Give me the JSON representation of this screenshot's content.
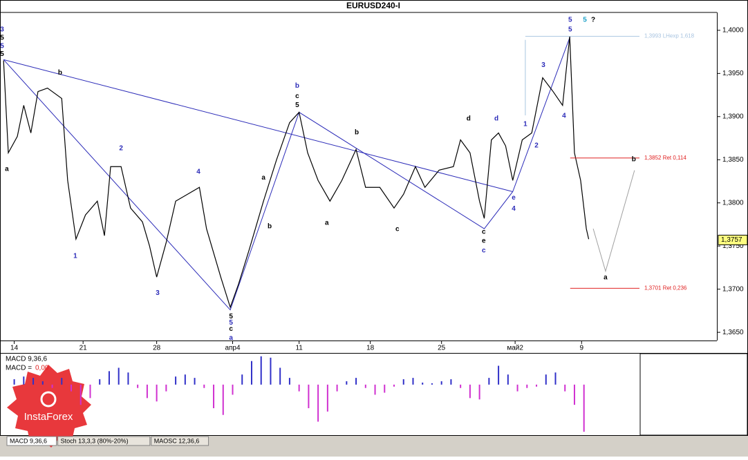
{
  "chart_data": [
    {
      "type": "line",
      "title": "EURUSD240-I",
      "color": "#000000",
      "x": [
        -4.5,
        -2.5,
        1.3,
        4,
        7,
        10,
        14,
        20,
        22.5,
        26,
        30,
        35,
        38,
        40.6,
        45,
        49,
        54,
        57,
        60,
        64,
        68,
        73,
        78,
        81,
        87,
        91,
        94.5,
        99,
        105,
        110.5,
        116,
        120,
        123.6,
        128,
        133,
        138,
        144,
        148,
        154,
        160,
        164,
        169,
        173,
        179,
        185,
        188,
        192,
        196,
        198,
        201,
        204,
        207,
        210,
        214,
        218,
        222.6,
        227,
        231,
        234,
        236,
        238.6,
        241,
        242
      ],
      "values": [
        1.3965,
        1.3858,
        1.3877,
        1.3913,
        1.3881,
        1.3929,
        1.3933,
        1.3921,
        1.3826,
        1.3758,
        1.3786,
        1.3802,
        1.3762,
        1.3842,
        1.3842,
        1.3794,
        1.3778,
        1.375,
        1.3714,
        1.3754,
        1.3802,
        1.381,
        1.3818,
        1.377,
        1.3714,
        1.3679,
        1.3706,
        1.3746,
        1.3802,
        1.385,
        1.3893,
        1.3905,
        1.3858,
        1.3826,
        1.3802,
        1.3826,
        1.3862,
        1.3818,
        1.3818,
        1.3794,
        1.381,
        1.3842,
        1.3818,
        1.3838,
        1.3842,
        1.3873,
        1.3858,
        1.3802,
        1.3782,
        1.3873,
        1.3881,
        1.3866,
        1.3826,
        1.3873,
        1.3881,
        1.3945,
        1.3929,
        1.3913,
        1.3993,
        1.3858,
        1.3826,
        1.377,
        1.3758
      ],
      "xlim": [
        -6,
        296
      ],
      "ylim": [
        1.36405,
        1.40207
      ],
      "xticks": [
        {
          "value": 0,
          "label": "14"
        },
        {
          "value": 29,
          "label": "21"
        },
        {
          "value": 60,
          "label": "28"
        },
        {
          "value": 92,
          "label": "апр4"
        },
        {
          "value": 120,
          "label": "11"
        },
        {
          "value": 150,
          "label": "18"
        },
        {
          "value": 180,
          "label": "25"
        },
        {
          "value": 211,
          "label": "май2"
        },
        {
          "value": 239,
          "label": "9"
        }
      ],
      "yticks": [
        {
          "value": 1.4,
          "label": "1,4000"
        },
        {
          "value": 1.395,
          "label": "1,3950"
        },
        {
          "value": 1.39,
          "label": "1,3900"
        },
        {
          "value": 1.385,
          "label": "1,3850"
        },
        {
          "value": 1.38,
          "label": "1,3800"
        },
        {
          "value": 1.375,
          "label": "1,3750"
        },
        {
          "value": 1.37,
          "label": "1,3700"
        },
        {
          "value": 1.365,
          "label": "1,3650"
        }
      ],
      "last": {
        "value": 1.3757,
        "label": "1,3757"
      },
      "levels": [
        {
          "value": 1.3993,
          "label": "1,3993 LHexp 1,618",
          "color": "#a8c4e0",
          "from": 215.3
        },
        {
          "value": 1.3852,
          "label": "1,3852 Ret 0,114",
          "color": "#e02020",
          "from": 234.2
        },
        {
          "value": 1.3701,
          "label": "1,3701 Ret 0,236",
          "color": "#e02020",
          "from": 234.2
        }
      ],
      "lines": [
        {
          "color": "#2b2bb8",
          "x": [
            -4.5,
            91,
            120,
            198,
            210,
            234.2
          ],
          "y": [
            1.3966,
            1.3676,
            1.3905,
            1.377,
            1.3813,
            1.3993
          ]
        },
        {
          "color": "#2b2bb8",
          "x": [
            -4.5,
            210
          ],
          "y": [
            1.3966,
            1.3813
          ]
        },
        {
          "color": "#a0a0a0",
          "x": [
            243.9,
            249.1,
            261.3
          ],
          "y": [
            1.37701,
            1.37208,
            1.38377
          ]
        },
        {
          "color": "#a8c4e0",
          "x": [
            215.3,
            215.3
          ],
          "y": [
            1.39014,
            1.39889
          ]
        }
      ],
      "annotations": [
        {
          "text": "5",
          "x": 234.2,
          "y": 1.40119,
          "color": "#2b2bb8"
        },
        {
          "text": "5",
          "x": 240.4,
          "y": 1.40119,
          "color": "#1aa0c8"
        },
        {
          "text": "?",
          "x": 243.9,
          "y": 1.40119,
          "color": "#000000"
        },
        {
          "text": "5",
          "x": 234.2,
          "y": 1.40008,
          "color": "#2b2bb8"
        },
        {
          "text": "3",
          "x": -5.1,
          "y": 1.40008,
          "color": "#2b2bb8"
        },
        {
          "text": "5",
          "x": -5.1,
          "y": 1.39913,
          "color": "#000000"
        },
        {
          "text": "5",
          "x": -5.1,
          "y": 1.39817,
          "color": "#2b2bb8"
        },
        {
          "text": "5",
          "x": -5.1,
          "y": 1.39722,
          "color": "#000000"
        },
        {
          "text": "a",
          "x": -3.1,
          "y": 1.38393,
          "color": "#000000"
        },
        {
          "text": "b",
          "x": 19.3,
          "y": 1.39507,
          "color": "#000000"
        },
        {
          "text": "2",
          "x": 45,
          "y": 1.38632,
          "color": "#2b2bb8"
        },
        {
          "text": "4",
          "x": 77.6,
          "y": 1.38361,
          "color": "#2b2bb8"
        },
        {
          "text": "3",
          "x": 60.4,
          "y": 1.36953,
          "color": "#2b2bb8"
        },
        {
          "text": "1",
          "x": 25.7,
          "y": 1.37383,
          "color": "#2b2bb8"
        },
        {
          "text": "b",
          "x": 119.2,
          "y": 1.39356,
          "color": "#2b2bb8"
        },
        {
          "text": "c",
          "x": 119.2,
          "y": 1.39236,
          "color": "#000000"
        },
        {
          "text": "5",
          "x": 119.2,
          "y": 1.39133,
          "color": "#000000"
        },
        {
          "text": "d",
          "x": 191.4,
          "y": 1.38974,
          "color": "#000000"
        },
        {
          "text": "d",
          "x": 203.1,
          "y": 1.38974,
          "color": "#2b2bb8"
        },
        {
          "text": "e",
          "x": 210.4,
          "y": 1.38059,
          "color": "#2b2bb8"
        },
        {
          "text": "4",
          "x": 210.4,
          "y": 1.37932,
          "color": "#2b2bb8"
        },
        {
          "text": "3",
          "x": 222.9,
          "y": 1.39594,
          "color": "#2b2bb8"
        },
        {
          "text": "4",
          "x": 231.6,
          "y": 1.39006,
          "color": "#2b2bb8"
        },
        {
          "text": "2",
          "x": 220,
          "y": 1.38664,
          "color": "#2b2bb8"
        },
        {
          "text": "1",
          "x": 215.3,
          "y": 1.3891,
          "color": "#2b2bb8"
        },
        {
          "text": "c",
          "x": 197.8,
          "y": 1.37661,
          "color": "#000000"
        },
        {
          "text": "e",
          "x": 197.8,
          "y": 1.37558,
          "color": "#000000"
        },
        {
          "text": "c",
          "x": 197.8,
          "y": 1.37446,
          "color": "#2b2bb8"
        },
        {
          "text": "5",
          "x": 91.3,
          "y": 1.36683,
          "color": "#000000"
        },
        {
          "text": "5",
          "x": 91.3,
          "y": 1.36611,
          "color": "#2b2bb8"
        },
        {
          "text": "c",
          "x": 91.3,
          "y": 1.3654,
          "color": "#000000"
        },
        {
          "text": "a",
          "x": 91.3,
          "y": 1.36436,
          "color": "#2b2bb8"
        },
        {
          "text": "b",
          "x": 144.3,
          "y": 1.38815,
          "color": "#000000"
        },
        {
          "text": "a",
          "x": 131.7,
          "y": 1.37765,
          "color": "#000000"
        },
        {
          "text": "c",
          "x": 161.4,
          "y": 1.37693,
          "color": "#000000"
        },
        {
          "text": "b",
          "x": 107.6,
          "y": 1.37725,
          "color": "#000000"
        },
        {
          "text": "a",
          "x": 105,
          "y": 1.3829,
          "color": "#000000"
        },
        {
          "text": "b",
          "x": 261,
          "y": 1.38505,
          "color": "#000000"
        },
        {
          "text": "a",
          "x": 249.1,
          "y": 1.37136,
          "color": "#000000"
        }
      ]
    },
    {
      "type": "bar",
      "title": "MACD 9,36,6",
      "value_title": "MACD =",
      "current": {
        "value": 0,
        "label": "0,00"
      },
      "positive_color": "#3030c8",
      "negative_color": "#d030d0",
      "ylim": [
        -75,
        46
      ],
      "x": [
        0,
        4,
        8,
        12,
        16,
        20,
        24,
        28,
        32,
        36,
        40,
        44,
        48,
        52,
        56,
        60,
        64,
        68,
        72,
        76,
        80,
        84,
        88,
        92,
        96,
        100,
        104,
        108,
        112,
        116,
        120,
        124,
        128,
        132,
        136,
        140,
        144,
        148,
        152,
        156,
        160,
        164,
        168,
        172,
        176,
        180,
        184,
        188,
        192,
        196,
        200,
        204,
        208,
        212,
        216,
        220,
        224,
        228,
        232,
        236,
        240
      ],
      "values": [
        8,
        12,
        10,
        5,
        -5,
        10,
        -10,
        -30,
        -20,
        8,
        20,
        25,
        18,
        -5,
        -20,
        -25,
        -10,
        12,
        15,
        10,
        -5,
        -35,
        -45,
        -15,
        15,
        35,
        42,
        40,
        25,
        10,
        -10,
        -35,
        -55,
        -40,
        -10,
        5,
        10,
        -5,
        -15,
        -12,
        -3,
        8,
        10,
        3,
        2,
        5,
        8,
        -5,
        -20,
        -22,
        10,
        28,
        15,
        -10,
        -5,
        -3,
        15,
        18,
        -10,
        -30,
        -70
      ]
    }
  ],
  "tabs": [
    "MACD 9,36,6",
    "Stoch 13,3,3 (80%-20%)",
    "MAOSC 12,36,6"
  ],
  "logo": "InstaForex"
}
